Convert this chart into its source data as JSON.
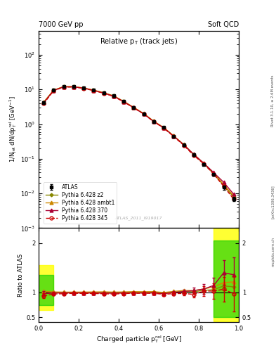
{
  "title_left": "7000 GeV pp",
  "title_right": "Soft QCD",
  "plot_title": "Relative p$_{T}$ (track jets)",
  "xlabel": "Charged particle p$_{T}^{rel}$ [GeV]",
  "ylabel_main": "1/N$_{jet}$ dN/dp$_{T}^{rel}$ [GeV$^{-1}$]",
  "ylabel_ratio": "Ratio to ATLAS",
  "right_label_top": "Rivet 3.1.10, ≥ 2.6M events",
  "right_label_mid": "[arXiv:1306.3436]",
  "right_label_bot": "mcplots.cern.ch",
  "watermark": "ATLAS_2011_I919017",
  "x_data": [
    0.025,
    0.075,
    0.125,
    0.175,
    0.225,
    0.275,
    0.325,
    0.375,
    0.425,
    0.475,
    0.525,
    0.575,
    0.625,
    0.675,
    0.725,
    0.775,
    0.825,
    0.875,
    0.925,
    0.975
  ],
  "atlas_y": [
    4.2,
    9.5,
    12.0,
    12.0,
    11.0,
    9.5,
    8.0,
    6.5,
    4.5,
    3.0,
    2.0,
    1.2,
    0.8,
    0.45,
    0.25,
    0.13,
    0.07,
    0.035,
    0.015,
    0.007
  ],
  "atlas_yerr": [
    0.3,
    0.5,
    0.5,
    0.5,
    0.4,
    0.4,
    0.3,
    0.3,
    0.2,
    0.15,
    0.1,
    0.06,
    0.04,
    0.025,
    0.015,
    0.008,
    0.005,
    0.003,
    0.002,
    0.001
  ],
  "py345_y": [
    3.9,
    9.2,
    11.7,
    11.8,
    10.8,
    9.3,
    7.8,
    6.3,
    4.4,
    2.95,
    1.97,
    1.18,
    0.77,
    0.44,
    0.245,
    0.125,
    0.072,
    0.036,
    0.016,
    0.0068
  ],
  "py370_y": [
    4.1,
    9.4,
    11.9,
    11.9,
    10.9,
    9.4,
    7.9,
    6.4,
    4.45,
    2.97,
    1.98,
    1.19,
    0.78,
    0.45,
    0.255,
    0.135,
    0.075,
    0.04,
    0.021,
    0.0095
  ],
  "pyambt1_y": [
    4.3,
    9.6,
    12.1,
    12.1,
    11.1,
    9.6,
    8.1,
    6.55,
    4.55,
    3.05,
    2.03,
    1.22,
    0.8,
    0.46,
    0.26,
    0.135,
    0.075,
    0.039,
    0.018,
    0.0085
  ],
  "pyz2_y": [
    4.25,
    9.55,
    12.05,
    12.0,
    11.0,
    9.5,
    8.0,
    6.5,
    4.52,
    3.02,
    2.01,
    1.21,
    0.79,
    0.455,
    0.255,
    0.132,
    0.073,
    0.037,
    0.017,
    0.0078
  ],
  "ratio_py345": [
    0.93,
    0.97,
    0.975,
    0.983,
    0.982,
    0.979,
    0.975,
    0.969,
    0.978,
    0.983,
    0.985,
    0.983,
    0.963,
    0.978,
    0.98,
    0.962,
    1.029,
    1.029,
    1.067,
    0.971
  ],
  "ratio_py370": [
    0.976,
    0.989,
    0.992,
    0.992,
    0.991,
    0.989,
    0.988,
    0.985,
    0.989,
    0.99,
    0.99,
    0.992,
    0.975,
    1.0,
    1.02,
    1.038,
    1.071,
    1.143,
    1.4,
    1.357
  ],
  "ratio_pyambt1": [
    1.024,
    1.011,
    1.008,
    1.008,
    1.009,
    1.011,
    1.013,
    1.008,
    1.011,
    1.017,
    1.015,
    1.017,
    1.0,
    1.022,
    1.04,
    1.038,
    1.071,
    1.114,
    1.2,
    1.214
  ],
  "ratio_pyz2": [
    1.012,
    1.005,
    1.004,
    1.0,
    1.0,
    1.0,
    1.0,
    1.0,
    1.004,
    1.007,
    1.005,
    1.008,
    0.988,
    1.011,
    1.02,
    1.015,
    1.043,
    1.057,
    1.133,
    1.114
  ],
  "ratio_yerr_py370": [
    0.05,
    0.03,
    0.025,
    0.025,
    0.025,
    0.025,
    0.025,
    0.025,
    0.025,
    0.025,
    0.025,
    0.025,
    0.03,
    0.035,
    0.04,
    0.06,
    0.1,
    0.15,
    0.25,
    0.35
  ],
  "ratio_yerr_py345": [
    0.05,
    0.03,
    0.025,
    0.025,
    0.025,
    0.025,
    0.025,
    0.025,
    0.025,
    0.025,
    0.025,
    0.025,
    0.03,
    0.035,
    0.04,
    0.06,
    0.1,
    0.15,
    0.25,
    0.35
  ],
  "color_atlas": "#000000",
  "color_py345": "#cc0000",
  "color_py370": "#aa0033",
  "color_pyambt1": "#cc8800",
  "color_pyz2": "#888800",
  "ylim_main": [
    0.001,
    500
  ],
  "xlim": [
    0.0,
    1.0
  ],
  "ratio_ylim": [
    0.4,
    2.3
  ]
}
